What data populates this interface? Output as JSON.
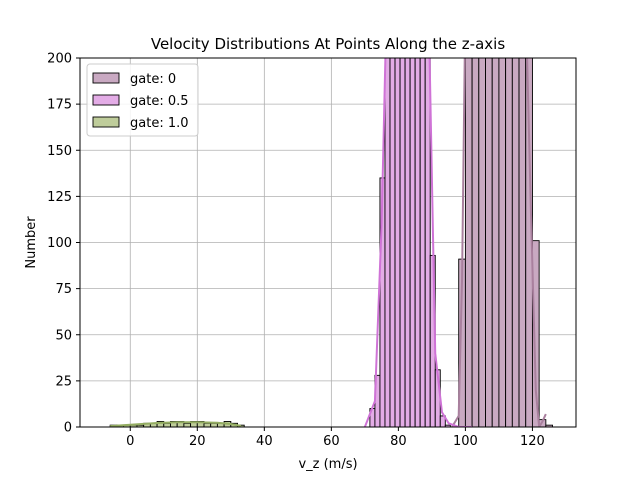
{
  "chart_data": {
    "type": "histogram",
    "title": "Velocity Distributions At Points Along the z-axis",
    "xlabel": "v_z (m/s)",
    "ylabel": "Number",
    "xlim": [
      -15,
      133
    ],
    "ylim": [
      0,
      200
    ],
    "x_ticks": [
      0,
      20,
      40,
      60,
      80,
      100,
      120
    ],
    "x_tick_labels": [
      "0",
      "20",
      "40",
      "60",
      "80",
      "100",
      "120"
    ],
    "y_ticks": [
      0,
      25,
      50,
      75,
      100,
      125,
      150,
      175,
      200
    ],
    "y_tick_labels": [
      "0",
      "25",
      "50",
      "75",
      "100",
      "125",
      "150",
      "175",
      "200"
    ],
    "grid": true,
    "legend_position": "top-left",
    "series": [
      {
        "name": "gate: 0",
        "legend_label": "gate: 0",
        "fill": "#c9a9c2",
        "line": "#a9809e",
        "bin_width": 2,
        "bins": [
          {
            "x": 98,
            "value": 91
          },
          {
            "x": 100,
            "value": 200
          },
          {
            "x": 102,
            "value": 200
          },
          {
            "x": 104,
            "value": 200
          },
          {
            "x": 106,
            "value": 200
          },
          {
            "x": 108,
            "value": 200
          },
          {
            "x": 110,
            "value": 200
          },
          {
            "x": 112,
            "value": 200
          },
          {
            "x": 114,
            "value": 200
          },
          {
            "x": 116,
            "value": 200
          },
          {
            "x": 118,
            "value": 200
          },
          {
            "x": 120,
            "value": 101
          },
          {
            "x": 122,
            "value": 4
          },
          {
            "x": 124,
            "value": 1
          }
        ],
        "kde": [
          [
            96,
            0
          ],
          [
            98,
            6
          ],
          [
            99,
            80
          ],
          [
            100,
            230
          ],
          [
            118,
            230
          ],
          [
            119.5,
            120
          ],
          [
            121,
            20
          ],
          [
            122,
            0
          ],
          [
            123,
            3
          ],
          [
            124,
            7
          ]
        ]
      },
      {
        "name": "gate: 0.5",
        "legend_label": "gate: 0.5",
        "fill": "#e3ace6",
        "line": "#cf73d6",
        "bin_width": 1.5,
        "bins": [
          {
            "x": 71.5,
            "value": 10
          },
          {
            "x": 73,
            "value": 28
          },
          {
            "x": 74.5,
            "value": 135
          },
          {
            "x": 76,
            "value": 200
          },
          {
            "x": 77.5,
            "value": 200
          },
          {
            "x": 79,
            "value": 200
          },
          {
            "x": 80.5,
            "value": 200
          },
          {
            "x": 82,
            "value": 200
          },
          {
            "x": 83.5,
            "value": 200
          },
          {
            "x": 85,
            "value": 200
          },
          {
            "x": 86.5,
            "value": 200
          },
          {
            "x": 88,
            "value": 200
          },
          {
            "x": 89.5,
            "value": 93
          },
          {
            "x": 91,
            "value": 31
          },
          {
            "x": 92.5,
            "value": 6
          },
          {
            "x": 94,
            "value": 1
          }
        ],
        "kde": [
          [
            70,
            0
          ],
          [
            73,
            14
          ],
          [
            75,
            110
          ],
          [
            76.5,
            230
          ],
          [
            89,
            230
          ],
          [
            91,
            40
          ],
          [
            93,
            8
          ],
          [
            95,
            2
          ],
          [
            98,
            0
          ],
          [
            102,
            0
          ]
        ]
      },
      {
        "name": "gate: 1.0",
        "legend_label": "gate: 1.0",
        "fill": "#bfcd9b",
        "line": "#94ad62",
        "bin_width": 2,
        "bins": [
          {
            "x": -6,
            "value": 1
          },
          {
            "x": -4,
            "value": 1
          },
          {
            "x": -2,
            "value": 1
          },
          {
            "x": 0,
            "value": 1
          },
          {
            "x": 2,
            "value": 1
          },
          {
            "x": 4,
            "value": 2
          },
          {
            "x": 6,
            "value": 2
          },
          {
            "x": 8,
            "value": 3
          },
          {
            "x": 10,
            "value": 2
          },
          {
            "x": 12,
            "value": 3
          },
          {
            "x": 14,
            "value": 3
          },
          {
            "x": 16,
            "value": 2
          },
          {
            "x": 18,
            "value": 3
          },
          {
            "x": 20,
            "value": 3
          },
          {
            "x": 22,
            "value": 2
          },
          {
            "x": 24,
            "value": 2
          },
          {
            "x": 26,
            "value": 2
          },
          {
            "x": 28,
            "value": 3
          },
          {
            "x": 30,
            "value": 2
          },
          {
            "x": 32,
            "value": 1
          }
        ],
        "kde": [
          [
            -6,
            0.5
          ],
          [
            0,
            1.2
          ],
          [
            8,
            2.2
          ],
          [
            14,
            2.6
          ],
          [
            20,
            2.6
          ],
          [
            26,
            2.3
          ],
          [
            30,
            1.6
          ],
          [
            33,
            0.6
          ]
        ]
      }
    ]
  }
}
